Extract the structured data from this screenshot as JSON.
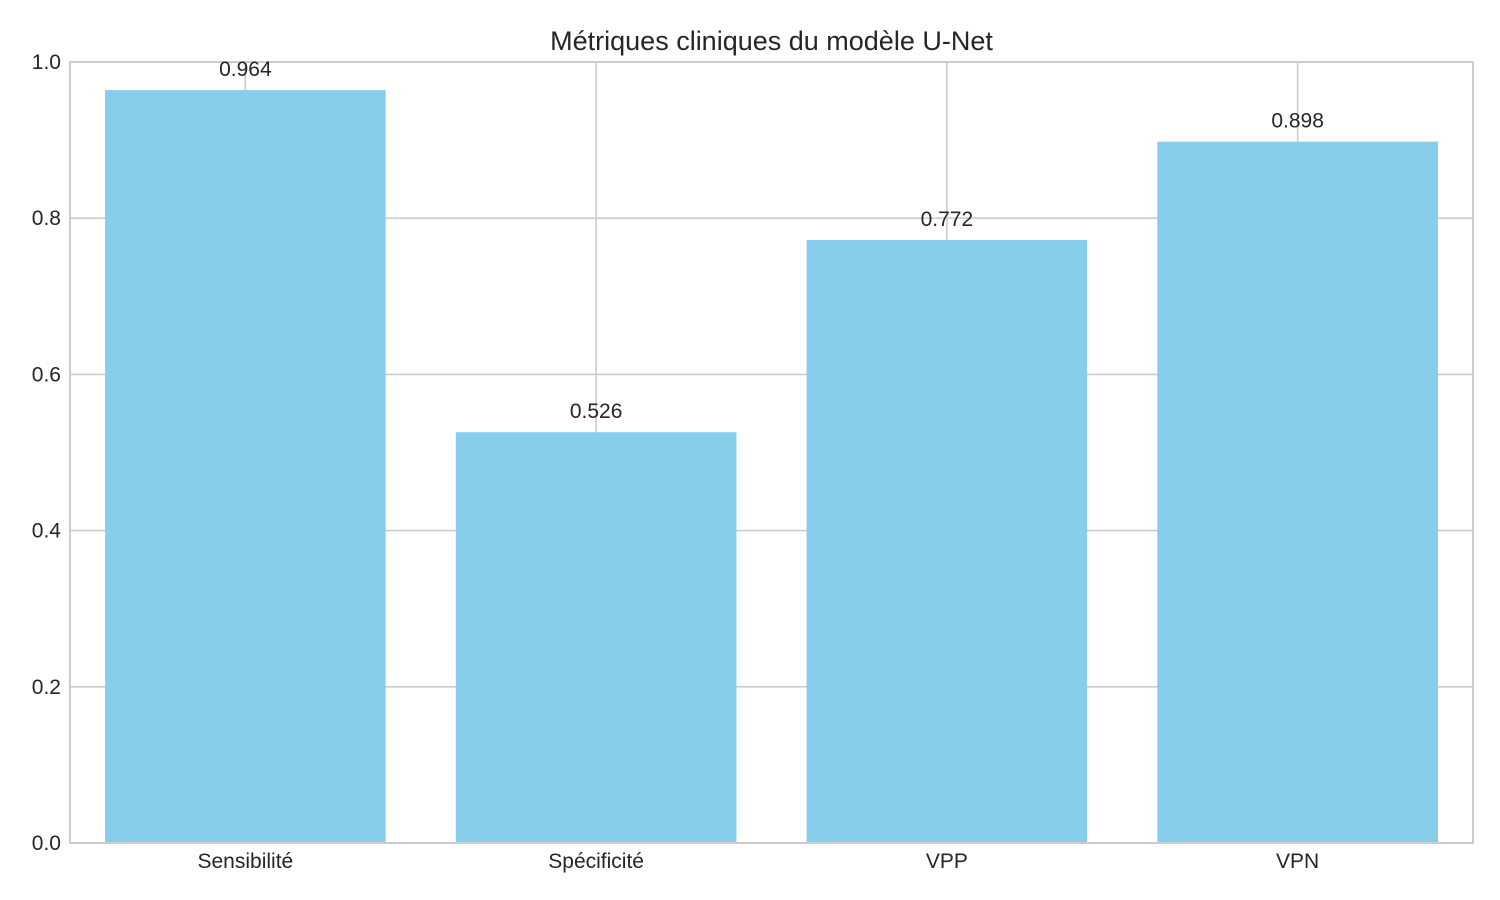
{
  "chart_data": {
    "type": "bar",
    "title": "Métriques cliniques du modèle U-Net",
    "categories": [
      "Sensibilité",
      "Spécificité",
      "VPP",
      "VPN"
    ],
    "values": [
      0.964,
      0.526,
      0.772,
      0.898
    ],
    "data_labels": [
      "0.964",
      "0.526",
      "0.772",
      "0.898"
    ],
    "xlabel": "",
    "ylabel": "",
    "ylim": [
      0,
      1.0
    ],
    "yticks": [
      0.0,
      0.2,
      0.4,
      0.6,
      0.8,
      1.0
    ],
    "ytick_labels": [
      "0.0",
      "0.2",
      "0.4",
      "0.6",
      "0.8",
      "1.0"
    ],
    "grid": true,
    "legend": "none",
    "colors": {
      "bar": "#87CEEB",
      "grid": "#cccccc",
      "axes_edge": "#cccccc",
      "text": "#262626"
    }
  }
}
